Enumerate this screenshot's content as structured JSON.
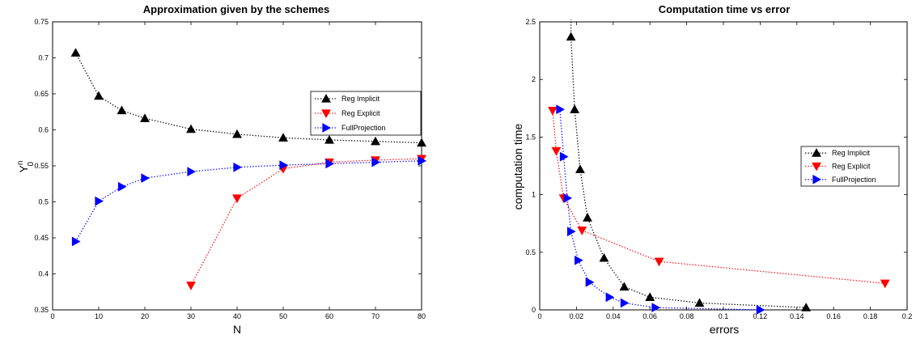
{
  "chart_data": [
    {
      "type": "line",
      "title": "Approximation given by the schemes",
      "xlabel": "N",
      "ylabel": "Y",
      "ylabel_sup": "n",
      "ylabel_sub": "0",
      "xlim": [
        0,
        80
      ],
      "ylim": [
        0.35,
        0.75
      ],
      "xticks": [
        0,
        10,
        20,
        30,
        40,
        50,
        60,
        70,
        80
      ],
      "yticks": [
        0.35,
        0.4,
        0.45,
        0.5,
        0.55,
        0.6,
        0.65,
        0.7,
        0.75
      ],
      "xtick_labels": [
        "0",
        "10",
        "20",
        "30",
        "40",
        "50",
        "60",
        "70",
        "80"
      ],
      "ytick_labels": [
        "0.35",
        "0.4",
        "0.45",
        "0.5",
        "0.55",
        "0.6",
        "0.65",
        "0.7",
        "0.75"
      ],
      "grid": false,
      "legend_position": "upper-right",
      "series": [
        {
          "name": "Reg Implicit",
          "color": "#000000",
          "marker": "triangle-up",
          "x": [
            5,
            10,
            15,
            20,
            30,
            40,
            50,
            60,
            70,
            80
          ],
          "y": [
            0.707,
            0.647,
            0.627,
            0.616,
            0.601,
            0.594,
            0.589,
            0.586,
            0.584,
            0.582
          ]
        },
        {
          "name": "Reg Explicit",
          "color": "#ff0000",
          "marker": "triangle-down",
          "x": [
            30,
            40,
            50,
            60,
            70,
            80
          ],
          "y": [
            0.384,
            0.505,
            0.546,
            0.555,
            0.558,
            0.56
          ]
        },
        {
          "name": "FullProjection",
          "color": "#0000ff",
          "marker": "triangle-right",
          "x": [
            5,
            10,
            15,
            20,
            30,
            40,
            50,
            60,
            70,
            80
          ],
          "y": [
            0.445,
            0.501,
            0.521,
            0.533,
            0.542,
            0.548,
            0.551,
            0.553,
            0.555,
            0.557
          ]
        }
      ]
    },
    {
      "type": "line",
      "title": "Computation time vs error",
      "xlabel": "errors",
      "ylabel": "computation time",
      "xlim": [
        0,
        0.2
      ],
      "ylim": [
        0,
        2.5
      ],
      "xticks": [
        0,
        0.02,
        0.04,
        0.06,
        0.08,
        0.1,
        0.12,
        0.14,
        0.16,
        0.18,
        0.2
      ],
      "yticks": [
        0,
        0.5,
        1,
        1.5,
        2,
        2.5
      ],
      "xtick_labels": [
        "0",
        "0.02",
        "0.04",
        "0.06",
        "0.08",
        "0.1",
        "0.12",
        "0.14",
        "0.16",
        "0.18",
        "0.2"
      ],
      "ytick_labels": [
        "0",
        "0.5",
        "1",
        "1.5",
        "2",
        "2.5"
      ],
      "grid": false,
      "legend_position": "right",
      "series": [
        {
          "name": "Reg Implicit",
          "color": "#000000",
          "marker": "triangle-up",
          "x": [
            0.145,
            0.087,
            0.06,
            0.046,
            0.035,
            0.026,
            0.022,
            0.019,
            0.017
          ],
          "y": [
            0.02,
            0.06,
            0.11,
            0.2,
            0.45,
            0.8,
            1.22,
            1.74,
            2.37
          ],
          "extend_to": [
            0.017,
            2.52
          ]
        },
        {
          "name": "Reg Explicit",
          "color": "#ff0000",
          "marker": "triangle-down",
          "x": [
            0.188,
            0.065,
            0.023,
            0.013,
            0.009,
            0.007
          ],
          "y": [
            0.23,
            0.42,
            0.69,
            0.97,
            1.38,
            1.73
          ]
        },
        {
          "name": "FullProjection",
          "color": "#0000ff",
          "marker": "triangle-right",
          "x": [
            0.12,
            0.063,
            0.046,
            0.038,
            0.027,
            0.021,
            0.017,
            0.015,
            0.013,
            0.011
          ],
          "y": [
            0.0,
            0.02,
            0.06,
            0.11,
            0.24,
            0.43,
            0.68,
            0.97,
            1.33,
            1.74
          ]
        }
      ]
    }
  ]
}
